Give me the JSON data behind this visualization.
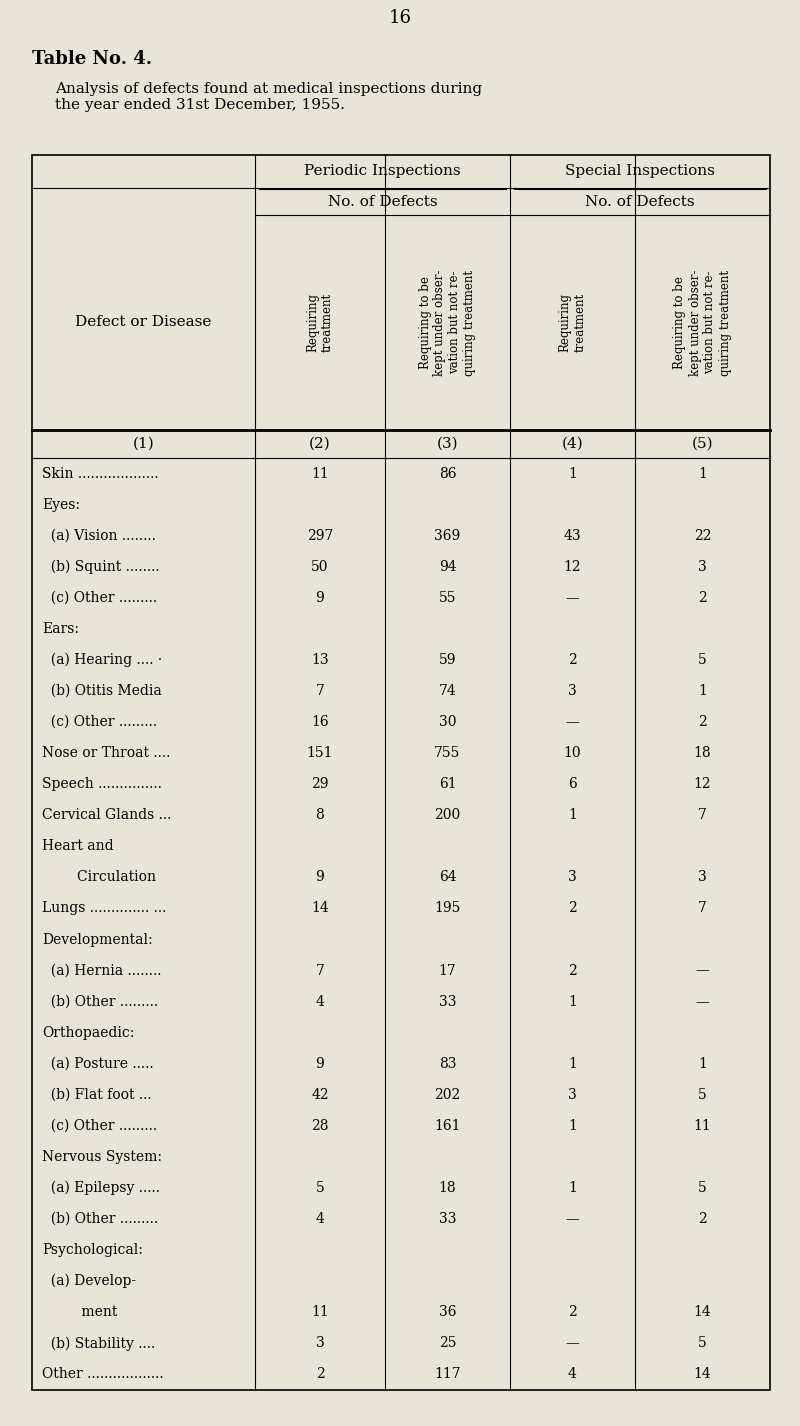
{
  "page_number": "16",
  "title_bold": "Table No. 4.",
  "subtitle": "Analysis of defects found at medical inspections during\nthe year ended 31st December, 1955.",
  "bg_color": "#e8e4d8",
  "col_headers_rot": [
    "Requiring\ntreatment",
    "Requiring to be\nkept under obser-\nvation but not re-\nquiring treatment",
    "Requiring\ntreatment",
    "Requiring to be\nkept under obser-\nvation but not re-\nquiring treatment"
  ],
  "col_numbers": [
    "(1)",
    "(2)",
    "(3)",
    "(4)",
    "(5)"
  ],
  "rows": [
    {
      "label": "Skin ...................",
      "indent": 0,
      "v2": "11",
      "v3": "86",
      "v4": "1",
      "v5": "1",
      "header": false
    },
    {
      "label": "Eyes:",
      "indent": 0,
      "v2": "",
      "v3": "",
      "v4": "",
      "v5": "",
      "header": true
    },
    {
      "label": "  (a) Vision ........",
      "indent": 1,
      "v2": "297",
      "v3": "369",
      "v4": "43",
      "v5": "22",
      "header": false
    },
    {
      "label": "  (b) Squint ........",
      "indent": 1,
      "v2": "50",
      "v3": "94",
      "v4": "12",
      "v5": "3",
      "header": false
    },
    {
      "label": "  (c) Other .........",
      "indent": 1,
      "v2": "9",
      "v3": "55",
      "v4": "—",
      "v5": "2",
      "header": false
    },
    {
      "label": "Ears:",
      "indent": 0,
      "v2": "",
      "v3": "",
      "v4": "",
      "v5": "",
      "header": true
    },
    {
      "label": "  (a) Hearing .... ·",
      "indent": 1,
      "v2": "13",
      "v3": "59",
      "v4": "2",
      "v5": "5",
      "header": false
    },
    {
      "label": "  (b) Otitis Media",
      "indent": 1,
      "v2": "7",
      "v3": "74",
      "v4": "3",
      "v5": "1",
      "header": false
    },
    {
      "label": "  (c) Other .........",
      "indent": 1,
      "v2": "16",
      "v3": "30",
      "v4": "—",
      "v5": "2",
      "header": false
    },
    {
      "label": "Nose or Throat ....",
      "indent": 0,
      "v2": "151",
      "v3": "755",
      "v4": "10",
      "v5": "18",
      "header": false
    },
    {
      "label": "Speech ...............",
      "indent": 0,
      "v2": "29",
      "v3": "61",
      "v4": "6",
      "v5": "12",
      "header": false
    },
    {
      "label": "Cervical Glands ...",
      "indent": 0,
      "v2": "8",
      "v3": "200",
      "v4": "1",
      "v5": "7",
      "header": false
    },
    {
      "label": "Heart and",
      "indent": 0,
      "v2": "",
      "v3": "",
      "v4": "",
      "v5": "",
      "header": true
    },
    {
      "label": "        Circulation",
      "indent": 0,
      "v2": "9",
      "v3": "64",
      "v4": "3",
      "v5": "3",
      "header": false
    },
    {
      "label": "Lungs .............. ...",
      "indent": 0,
      "v2": "14",
      "v3": "195",
      "v4": "2",
      "v5": "7",
      "header": false
    },
    {
      "label": "Developmental:",
      "indent": 0,
      "v2": "",
      "v3": "",
      "v4": "",
      "v5": "",
      "header": true
    },
    {
      "label": "  (a) Hernia ........",
      "indent": 1,
      "v2": "7",
      "v3": "17",
      "v4": "2",
      "v5": "—",
      "header": false
    },
    {
      "label": "  (b) Other .........",
      "indent": 1,
      "v2": "4",
      "v3": "33",
      "v4": "1",
      "v5": "—",
      "header": false
    },
    {
      "label": "Orthopaedic:",
      "indent": 0,
      "v2": "",
      "v3": "",
      "v4": "",
      "v5": "",
      "header": true
    },
    {
      "label": "  (a) Posture .....",
      "indent": 1,
      "v2": "9",
      "v3": "83",
      "v4": "1",
      "v5": "1",
      "header": false
    },
    {
      "label": "  (b) Flat foot ...",
      "indent": 1,
      "v2": "42",
      "v3": "202",
      "v4": "3",
      "v5": "5",
      "header": false
    },
    {
      "label": "  (c) Other .........",
      "indent": 1,
      "v2": "28",
      "v3": "161",
      "v4": "1",
      "v5": "11",
      "header": false
    },
    {
      "label": "Nervous System:",
      "indent": 0,
      "v2": "",
      "v3": "",
      "v4": "",
      "v5": "",
      "header": true
    },
    {
      "label": "  (a) Epilepsy .....",
      "indent": 1,
      "v2": "5",
      "v3": "18",
      "v4": "1",
      "v5": "5",
      "header": false
    },
    {
      "label": "  (b) Other .........",
      "indent": 1,
      "v2": "4",
      "v3": "33",
      "v4": "—",
      "v5": "2",
      "header": false
    },
    {
      "label": "Psychological:",
      "indent": 0,
      "v2": "",
      "v3": "",
      "v4": "",
      "v5": "",
      "header": true
    },
    {
      "label": "  (a) Develop-",
      "indent": 1,
      "v2": "",
      "v3": "",
      "v4": "",
      "v5": "",
      "header": true
    },
    {
      "label": "         ment",
      "indent": 1,
      "v2": "11",
      "v3": "36",
      "v4": "2",
      "v5": "14",
      "header": false
    },
    {
      "label": "  (b) Stability ....",
      "indent": 1,
      "v2": "3",
      "v3": "25",
      "v4": "—",
      "v5": "5",
      "header": false
    },
    {
      "label": "Other ..................",
      "indent": 0,
      "v2": "2",
      "v3": "117",
      "v4": "4",
      "v5": "14",
      "header": false
    }
  ]
}
